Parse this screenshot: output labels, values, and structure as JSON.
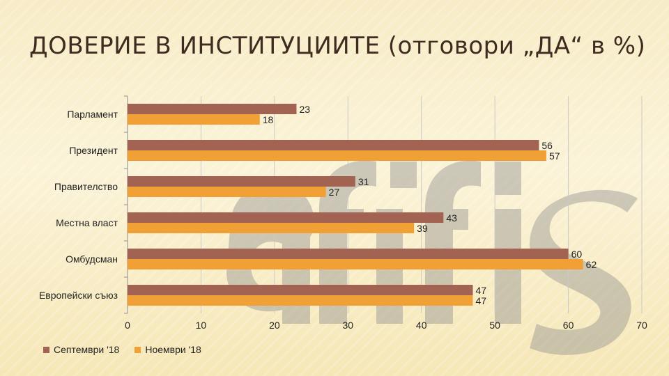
{
  "title_main": "ДОВЕРИЕ В ИНСТИТУЦИИТЕ",
  "title_sub": " (отговори „ДА“ в %)",
  "colors": {
    "series1": "#a36352",
    "series2": "#f0a035",
    "title": "#3f2b20",
    "grid": "#c9c9c9",
    "axis": "#8c8c8c"
  },
  "watermark": {
    "text": "afis",
    "color": "#8c8c8c"
  },
  "chart_data": {
    "type": "bar",
    "orientation": "horizontal",
    "categories": [
      "Парламент",
      "Президент",
      "Правителство",
      "Местна власт",
      "Омбудсман",
      "Европейски съюз"
    ],
    "series": [
      {
        "name": "Септември '18",
        "values": [
          23,
          56,
          31,
          43,
          60,
          47
        ]
      },
      {
        "name": "Ноември '18",
        "values": [
          18,
          57,
          27,
          39,
          62,
          47
        ]
      }
    ],
    "xticks": [
      "0",
      "10",
      "20",
      "30",
      "40",
      "50",
      "60",
      "70"
    ],
    "xlim": [
      0,
      70
    ],
    "grid": true,
    "legend_position": "bottom-left"
  }
}
